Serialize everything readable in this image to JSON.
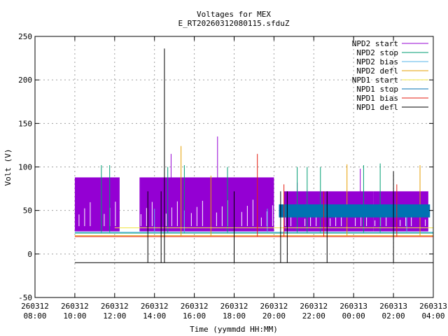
{
  "chart_data": {
    "type": "line",
    "title": "Voltages for MEX",
    "subtitle": "E_RT20260312080115.sfduZ",
    "xlabel": "Time (yymmdd HH:MM)",
    "ylabel": "Volt (V)",
    "ylim": [
      -50,
      250
    ],
    "y_ticks": [
      -50,
      0,
      50,
      100,
      150,
      200,
      250
    ],
    "xlim": [
      "2026-03-12 08:00",
      "2026-03-13 04:00"
    ],
    "x_ticks": [
      {
        "date": "260312",
        "time": "08:00"
      },
      {
        "date": "260312",
        "time": "10:00"
      },
      {
        "date": "260312",
        "time": "12:00"
      },
      {
        "date": "260312",
        "time": "14:00"
      },
      {
        "date": "260312",
        "time": "16:00"
      },
      {
        "date": "260312",
        "time": "18:00"
      },
      {
        "date": "260312",
        "time": "20:00"
      },
      {
        "date": "260312",
        "time": "22:00"
      },
      {
        "date": "260313",
        "time": "00:00"
      },
      {
        "date": "260313",
        "time": "02:00"
      },
      {
        "date": "260313",
        "time": "04:00"
      }
    ],
    "grid": true,
    "legend_position": "top-right",
    "series": [
      {
        "name": "NPD2 start",
        "color": "#9400d3",
        "segments": [
          {
            "from": "2026-03-12 10:00",
            "to": "2026-03-12 12:15",
            "low": 26,
            "high": 88
          },
          {
            "from": "2026-03-12 13:15",
            "to": "2026-03-12 20:00",
            "low": 26,
            "high": 88
          },
          {
            "from": "2026-03-12 20:30",
            "to": "2026-03-13 01:00",
            "low": 26,
            "high": 72
          },
          {
            "from": "2026-03-13 01:00",
            "to": "2026-03-13 03:45",
            "low": 26,
            "high": 72
          }
        ],
        "spikes": [
          {
            "t": "2026-03-12 17:10",
            "v": 135
          },
          {
            "t": "2026-03-12 14:50",
            "v": 115
          },
          {
            "t": "2026-03-12 21:10",
            "v": 82
          },
          {
            "t": "2026-03-13 00:20",
            "v": 98
          }
        ]
      },
      {
        "name": "NPD2 stop",
        "color": "#009e73",
        "level": 24,
        "from": "2026-03-12 10:00",
        "to": "2026-03-13 04:00",
        "spikes": [
          {
            "t": "2026-03-12 11:20",
            "v": 102
          },
          {
            "t": "2026-03-12 11:45",
            "v": 102
          },
          {
            "t": "2026-03-12 14:40",
            "v": 100
          },
          {
            "t": "2026-03-12 15:30",
            "v": 102
          },
          {
            "t": "2026-03-12 17:40",
            "v": 100
          },
          {
            "t": "2026-03-12 21:10",
            "v": 100
          },
          {
            "t": "2026-03-12 21:40",
            "v": 100
          },
          {
            "t": "2026-03-12 22:20",
            "v": 100
          },
          {
            "t": "2026-03-13 00:30",
            "v": 102
          },
          {
            "t": "2026-03-13 01:20",
            "v": 104
          }
        ]
      },
      {
        "name": "NPD2 bias",
        "color": "#56b4e9",
        "level": 25,
        "from": "2026-03-12 10:00",
        "to": "2026-03-13 04:00",
        "spikes": [
          {
            "t": "2026-03-12 14:00",
            "v": 52
          },
          {
            "t": "2026-03-12 15:30",
            "v": 50
          },
          {
            "t": "2026-03-12 19:40",
            "v": 52
          },
          {
            "t": "2026-03-13 02:40",
            "v": 48
          }
        ]
      },
      {
        "name": "NPD2 defl",
        "color": "#e69f00",
        "level": 21,
        "from": "2026-03-12 10:00",
        "to": "2026-03-13 04:00",
        "spikes": [
          {
            "t": "2026-03-12 15:20",
            "v": 124
          },
          {
            "t": "2026-03-12 16:50",
            "v": 90
          },
          {
            "t": "2026-03-12 23:40",
            "v": 103
          },
          {
            "t": "2026-03-13 03:20",
            "v": 102
          }
        ]
      },
      {
        "name": "NPD1 start",
        "color": "#f0e442",
        "level": 30,
        "from": "2026-03-12 12:00",
        "to": "2026-03-13 04:00",
        "spikes": []
      },
      {
        "name": "NPD1 stop",
        "color": "#0072b2",
        "segments": [
          {
            "from": "2026-03-12 20:15",
            "to": "2026-03-13 03:50",
            "low": 42,
            "high": 57
          }
        ],
        "spikes": []
      },
      {
        "name": "NPD1 bias",
        "color": "#e51e10",
        "level": 20,
        "from": "2026-03-12 10:00",
        "to": "2026-03-13 04:00",
        "spikes": [
          {
            "t": "2026-03-12 19:10",
            "v": 115
          },
          {
            "t": "2026-03-12 20:30",
            "v": 80
          },
          {
            "t": "2026-03-12 22:30",
            "v": 72
          },
          {
            "t": "2026-03-13 02:10",
            "v": 80
          }
        ]
      },
      {
        "name": "NPD1 defl",
        "color": "#000000",
        "level": -10,
        "from": "2026-03-12 10:00",
        "to": "2026-03-13 04:00",
        "spikes": [
          {
            "t": "2026-03-12 13:40",
            "v": 72
          },
          {
            "t": "2026-03-12 14:20",
            "v": 72
          },
          {
            "t": "2026-03-12 14:30",
            "v": 236
          },
          {
            "t": "2026-03-12 18:00",
            "v": 72
          },
          {
            "t": "2026-03-12 20:20",
            "v": 72
          },
          {
            "t": "2026-03-12 20:40",
            "v": 72
          },
          {
            "t": "2026-03-12 22:40",
            "v": 72
          },
          {
            "t": "2026-03-13 02:00",
            "v": 95
          }
        ]
      }
    ]
  }
}
